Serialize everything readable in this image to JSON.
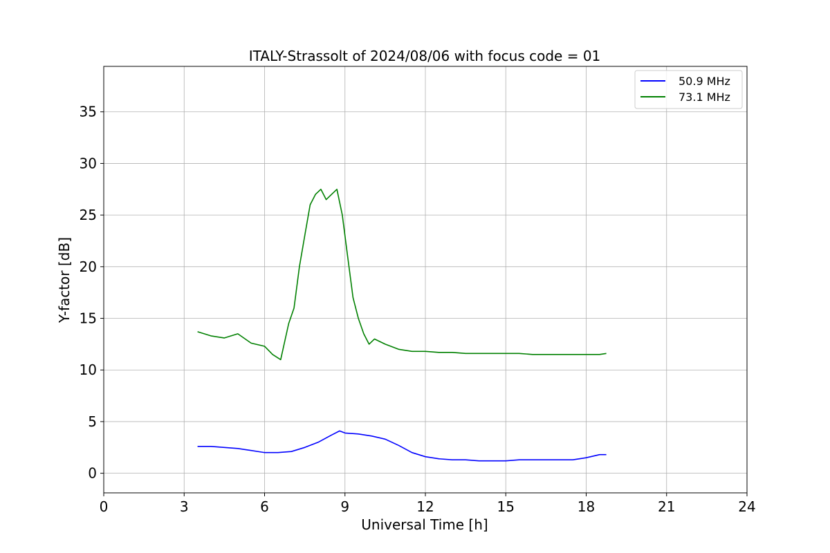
{
  "chart_data": {
    "type": "line",
    "title": "ITALY-Strassolt of 2024/08/06 with focus code = 01",
    "xlabel": "Universal Time [h]",
    "ylabel": "Y-factor [dB]",
    "xlim": [
      0,
      24
    ],
    "ylim": [
      -1.9,
      39.4
    ],
    "xticks": [
      0,
      3,
      6,
      9,
      12,
      15,
      18,
      21,
      24
    ],
    "yticks": [
      0,
      5,
      10,
      15,
      20,
      25,
      30,
      35
    ],
    "grid": true,
    "legend_position": "top-right",
    "series": [
      {
        "name": "50.9 MHz",
        "color": "#0000ff",
        "x": [
          3.5,
          4.0,
          4.5,
          5.0,
          5.5,
          6.0,
          6.5,
          7.0,
          7.5,
          8.0,
          8.5,
          8.8,
          9.0,
          9.5,
          10.0,
          10.5,
          11.0,
          11.5,
          12.0,
          12.5,
          13.0,
          13.5,
          14.0,
          14.5,
          15.0,
          15.5,
          16.0,
          16.5,
          17.0,
          17.5,
          18.0,
          18.5,
          18.75
        ],
        "values": [
          2.6,
          2.6,
          2.5,
          2.4,
          2.2,
          2.0,
          2.0,
          2.1,
          2.5,
          3.0,
          3.7,
          4.1,
          3.9,
          3.8,
          3.6,
          3.3,
          2.7,
          2.0,
          1.6,
          1.4,
          1.3,
          1.3,
          1.2,
          1.2,
          1.2,
          1.3,
          1.3,
          1.3,
          1.3,
          1.3,
          1.5,
          1.8,
          1.8
        ]
      },
      {
        "name": "73.1 MHz",
        "color": "#008000",
        "x": [
          3.5,
          4.0,
          4.5,
          5.0,
          5.5,
          6.0,
          6.3,
          6.6,
          6.9,
          7.1,
          7.3,
          7.5,
          7.7,
          7.9,
          8.1,
          8.3,
          8.5,
          8.7,
          8.9,
          9.1,
          9.3,
          9.5,
          9.7,
          9.9,
          10.1,
          10.5,
          11.0,
          11.5,
          12.0,
          12.5,
          13.0,
          13.5,
          14.0,
          14.5,
          15.0,
          15.5,
          16.0,
          16.5,
          17.0,
          17.5,
          18.0,
          18.5,
          18.75
        ],
        "values": [
          13.7,
          13.3,
          13.1,
          13.5,
          12.6,
          12.3,
          11.5,
          11.0,
          14.5,
          16.0,
          20.0,
          23.0,
          26.0,
          27.0,
          27.5,
          26.5,
          27.0,
          27.5,
          25.0,
          21.0,
          17.0,
          15.0,
          13.5,
          12.5,
          13.0,
          12.5,
          12.0,
          11.8,
          11.8,
          11.7,
          11.7,
          11.6,
          11.6,
          11.6,
          11.6,
          11.6,
          11.5,
          11.5,
          11.5,
          11.5,
          11.5,
          11.5,
          11.6
        ]
      }
    ]
  }
}
